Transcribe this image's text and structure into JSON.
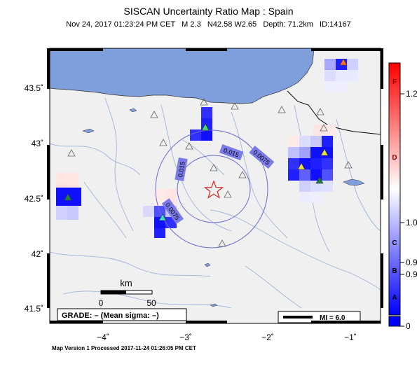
{
  "header": {
    "title": "SISCAN Uncertainty Ratio Map : Spain",
    "subtitle": "Nov 24, 2017 01:23:24 PM CET   M 2.3   N42.58 W2.65   Depth: 71.2km   ID:14167"
  },
  "axes": {
    "lat_ticks": [
      "43.5˚",
      "43˚",
      "42.5˚",
      "42˚",
      "41.5˚"
    ],
    "lon_ticks": [
      "−4˚",
      "−3˚",
      "−2˚",
      "−1˚"
    ]
  },
  "contours": [
    "0.015",
    "0.0075",
    "0.015",
    "0.0075"
  ],
  "scale_bar": {
    "title": "km",
    "ticks": [
      "0",
      "50"
    ]
  },
  "grade_box": "GRADE: – (Mean sigma: –)",
  "mi_box": "MI = 6.0",
  "colorbar": {
    "left_labels": [
      "F",
      "D",
      "C",
      "B",
      "A"
    ],
    "right_labels": [
      "1.2",
      "1.0",
      "0.9",
      "0.9",
      "0"
    ],
    "colors": {
      "top": "#ff0000",
      "mid": "#ffffff",
      "bottom": "#0000ff"
    }
  },
  "footer": "Map Version 1 Processed 2017-11-24 01:26:05 PM CET",
  "colors": {
    "sea": "#7f9fdc",
    "land": "#f0f0f0",
    "rivers": "#9fb4d9",
    "border": "#000000",
    "epicenter": "#e0201c"
  }
}
